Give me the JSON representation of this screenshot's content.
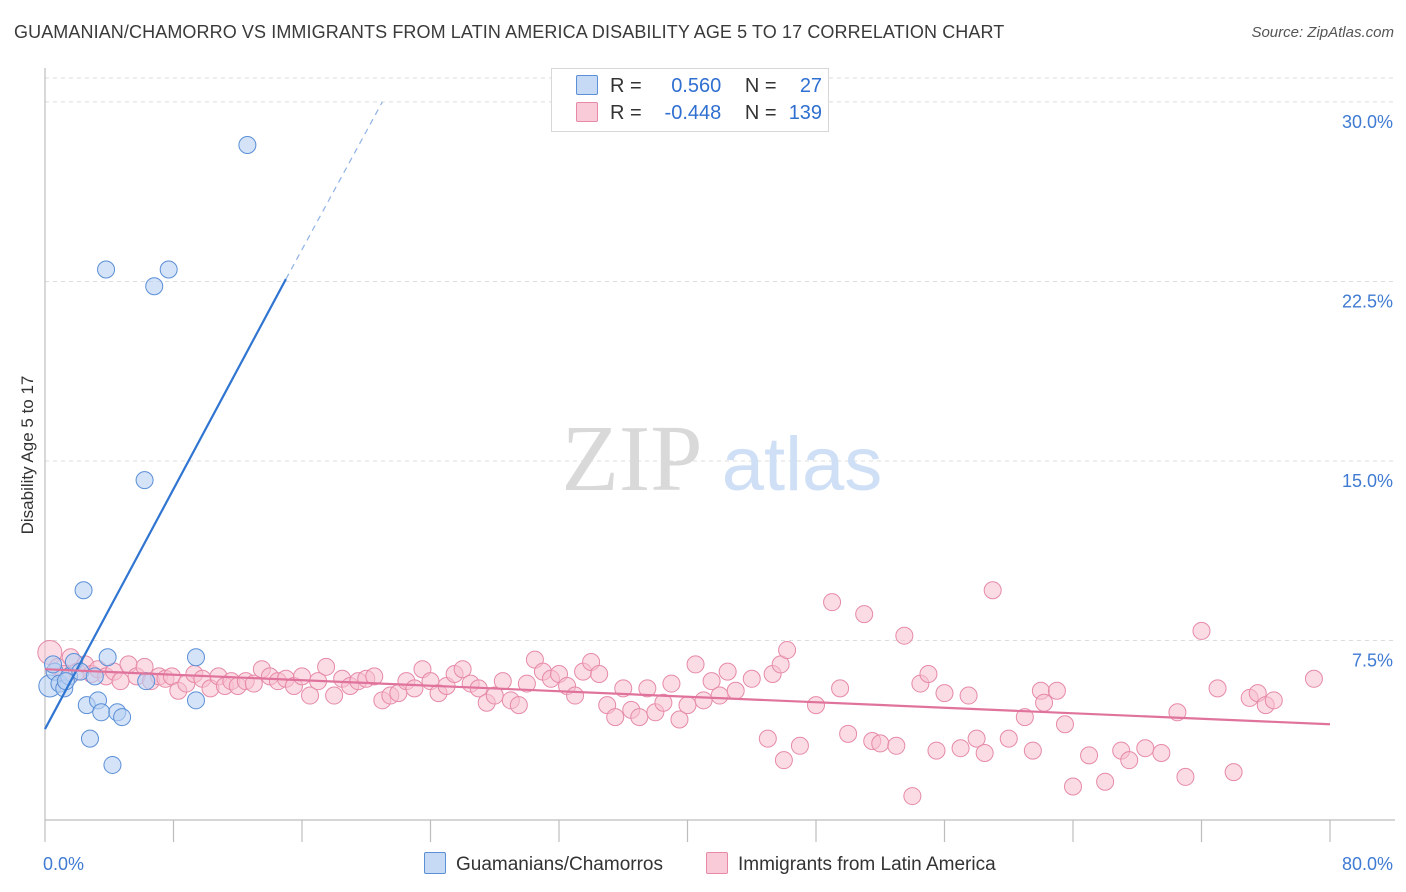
{
  "title": "GUAMANIAN/CHAMORRO VS IMMIGRANTS FROM LATIN AMERICA DISABILITY AGE 5 TO 17 CORRELATION CHART",
  "source": "Source: ZipAtlas.com",
  "watermark": {
    "zip": "ZIP",
    "atlas": "atlas"
  },
  "legend": {
    "r_label": "R =",
    "n_label": "N =",
    "rows": [
      {
        "r": "0.560",
        "n": "27"
      },
      {
        "r": "-0.448",
        "n": "139"
      }
    ]
  },
  "colors": {
    "blue_fill": "#b8d1f3",
    "blue_edge": "#5b8fd6",
    "blue_line": "#2f75d1",
    "pink_fill": "#f7bfd0",
    "pink_edge": "#e68aa8",
    "pink_line": "#e0739b",
    "tick_label": "#3f7bd2",
    "grid": "#dcdcdc"
  },
  "chart_data": {
    "type": "scatter",
    "title": "GUAMANIAN/CHAMORRO VS IMMIGRANTS FROM LATIN AMERICA DISABILITY AGE 5 TO 17 CORRELATION CHART",
    "xlabel": "",
    "ylabel": "Disability Age 5 to 17",
    "xlim": [
      0,
      80
    ],
    "ylim": [
      0,
      31
    ],
    "x_tick_labels": [
      "0.0%",
      "80.0%"
    ],
    "y_ticks": [
      7.5,
      15.0,
      22.5,
      30.0
    ],
    "y_tick_labels": [
      "7.5%",
      "15.0%",
      "22.5%",
      "30.0%"
    ],
    "grid": true,
    "legend_position": "top-center",
    "series": [
      {
        "name": "Guamanians/Chamorros",
        "color": "blue",
        "points": [
          [
            0.3,
            5.6
          ],
          [
            0.6,
            6.2
          ],
          [
            0.9,
            5.7
          ],
          [
            1.2,
            5.5
          ],
          [
            1.5,
            6.0
          ],
          [
            1.8,
            6.6
          ],
          [
            2.2,
            6.2
          ],
          [
            2.4,
            9.6
          ],
          [
            2.6,
            4.8
          ],
          [
            2.8,
            3.4
          ],
          [
            3.1,
            6.0
          ],
          [
            3.3,
            5.0
          ],
          [
            3.5,
            4.5
          ],
          [
            3.9,
            6.8
          ],
          [
            4.2,
            2.3
          ],
          [
            4.5,
            4.5
          ],
          [
            4.8,
            4.3
          ],
          [
            3.8,
            23.0
          ],
          [
            6.2,
            14.2
          ],
          [
            6.3,
            5.8
          ],
          [
            6.8,
            22.3
          ],
          [
            7.7,
            23.0
          ],
          [
            9.4,
            6.8
          ],
          [
            9.4,
            5.0
          ],
          [
            12.6,
            28.2
          ],
          [
            0.5,
            6.5
          ],
          [
            1.3,
            5.8
          ]
        ],
        "trend": {
          "x": [
            0,
            15.0
          ],
          "y": [
            3.8,
            22.6
          ],
          "dashed_to": [
            21.0,
            30.0
          ]
        }
      },
      {
        "name": "Immigrants from Latin America",
        "color": "pink",
        "points": [
          [
            0.3,
            7.0
          ],
          [
            0.8,
            6.4
          ],
          [
            1.2,
            6.1
          ],
          [
            1.6,
            6.8
          ],
          [
            2.0,
            6.2
          ],
          [
            2.5,
            6.5
          ],
          [
            2.9,
            6.1
          ],
          [
            3.3,
            6.3
          ],
          [
            3.8,
            6.0
          ],
          [
            4.3,
            6.2
          ],
          [
            4.7,
            5.8
          ],
          [
            5.2,
            6.5
          ],
          [
            5.7,
            6.0
          ],
          [
            6.2,
            6.4
          ],
          [
            6.6,
            5.8
          ],
          [
            7.1,
            6.0
          ],
          [
            7.5,
            5.9
          ],
          [
            7.9,
            6.0
          ],
          [
            8.3,
            5.4
          ],
          [
            8.8,
            5.7
          ],
          [
            9.3,
            6.1
          ],
          [
            9.8,
            5.9
          ],
          [
            10.3,
            5.5
          ],
          [
            10.8,
            6.0
          ],
          [
            11.2,
            5.6
          ],
          [
            11.6,
            5.8
          ],
          [
            12.0,
            5.6
          ],
          [
            12.5,
            5.8
          ],
          [
            13.0,
            5.7
          ],
          [
            13.5,
            6.3
          ],
          [
            14.0,
            6.0
          ],
          [
            14.5,
            5.8
          ],
          [
            15.0,
            5.9
          ],
          [
            15.5,
            5.6
          ],
          [
            16.0,
            6.0
          ],
          [
            16.5,
            5.2
          ],
          [
            17.0,
            5.8
          ],
          [
            17.5,
            6.4
          ],
          [
            18.0,
            5.2
          ],
          [
            18.5,
            5.9
          ],
          [
            19.0,
            5.6
          ],
          [
            19.5,
            5.8
          ],
          [
            20.0,
            5.9
          ],
          [
            20.5,
            6.0
          ],
          [
            21.0,
            5.0
          ],
          [
            21.5,
            5.2
          ],
          [
            22.0,
            5.3
          ],
          [
            22.5,
            5.8
          ],
          [
            23.0,
            5.5
          ],
          [
            23.5,
            6.3
          ],
          [
            24.0,
            5.8
          ],
          [
            24.5,
            5.3
          ],
          [
            25.0,
            5.6
          ],
          [
            25.5,
            6.1
          ],
          [
            26.0,
            6.3
          ],
          [
            26.5,
            5.7
          ],
          [
            27.0,
            5.5
          ],
          [
            27.5,
            4.9
          ],
          [
            28.0,
            5.2
          ],
          [
            28.5,
            5.8
          ],
          [
            29.0,
            5.0
          ],
          [
            29.5,
            4.8
          ],
          [
            30.0,
            5.7
          ],
          [
            30.5,
            6.7
          ],
          [
            31.0,
            6.2
          ],
          [
            31.5,
            5.9
          ],
          [
            32.0,
            6.1
          ],
          [
            32.5,
            5.6
          ],
          [
            33.0,
            5.2
          ],
          [
            33.5,
            6.2
          ],
          [
            34.0,
            6.6
          ],
          [
            34.5,
            6.1
          ],
          [
            35.0,
            4.8
          ],
          [
            35.5,
            4.3
          ],
          [
            36.0,
            5.5
          ],
          [
            36.5,
            4.6
          ],
          [
            37.0,
            4.3
          ],
          [
            37.5,
            5.5
          ],
          [
            38.0,
            4.5
          ],
          [
            38.5,
            4.9
          ],
          [
            39.0,
            5.7
          ],
          [
            39.5,
            4.2
          ],
          [
            40.0,
            4.8
          ],
          [
            40.5,
            6.5
          ],
          [
            41.0,
            5.0
          ],
          [
            41.5,
            5.8
          ],
          [
            42.0,
            5.2
          ],
          [
            42.5,
            6.2
          ],
          [
            43.0,
            5.4
          ],
          [
            44.0,
            5.9
          ],
          [
            45.0,
            3.4
          ],
          [
            45.3,
            6.1
          ],
          [
            45.8,
            6.5
          ],
          [
            46.0,
            2.5
          ],
          [
            46.2,
            7.1
          ],
          [
            47.0,
            3.1
          ],
          [
            48.0,
            4.8
          ],
          [
            49.0,
            9.1
          ],
          [
            49.5,
            5.5
          ],
          [
            50.0,
            3.6
          ],
          [
            51.0,
            8.6
          ],
          [
            51.5,
            3.3
          ],
          [
            52.0,
            3.2
          ],
          [
            53.0,
            3.1
          ],
          [
            53.5,
            7.7
          ],
          [
            54.0,
            1.0
          ],
          [
            54.5,
            5.7
          ],
          [
            55.0,
            6.1
          ],
          [
            55.5,
            2.9
          ],
          [
            56.0,
            5.3
          ],
          [
            57.0,
            3.0
          ],
          [
            57.5,
            5.2
          ],
          [
            58.0,
            3.4
          ],
          [
            58.5,
            2.8
          ],
          [
            59.0,
            9.6
          ],
          [
            60.0,
            3.4
          ],
          [
            61.0,
            4.3
          ],
          [
            61.5,
            2.9
          ],
          [
            62.0,
            5.4
          ],
          [
            62.2,
            4.9
          ],
          [
            63.0,
            5.4
          ],
          [
            63.5,
            4.0
          ],
          [
            64.0,
            1.4
          ],
          [
            65.0,
            2.7
          ],
          [
            66.0,
            1.6
          ],
          [
            67.0,
            2.9
          ],
          [
            67.5,
            2.5
          ],
          [
            68.5,
            3.0
          ],
          [
            69.5,
            2.8
          ],
          [
            70.5,
            4.5
          ],
          [
            71.0,
            1.8
          ],
          [
            72.0,
            7.9
          ],
          [
            73.0,
            5.5
          ],
          [
            74.0,
            2.0
          ],
          [
            75.0,
            5.1
          ],
          [
            75.5,
            5.3
          ],
          [
            76.0,
            4.8
          ],
          [
            76.5,
            5.0
          ],
          [
            79.0,
            5.9
          ]
        ],
        "trend": {
          "x": [
            0,
            80
          ],
          "y": [
            6.3,
            4.0
          ]
        }
      }
    ]
  },
  "bottom_legend": [
    "Guamanians/Chamorros",
    "Immigrants from Latin America"
  ]
}
